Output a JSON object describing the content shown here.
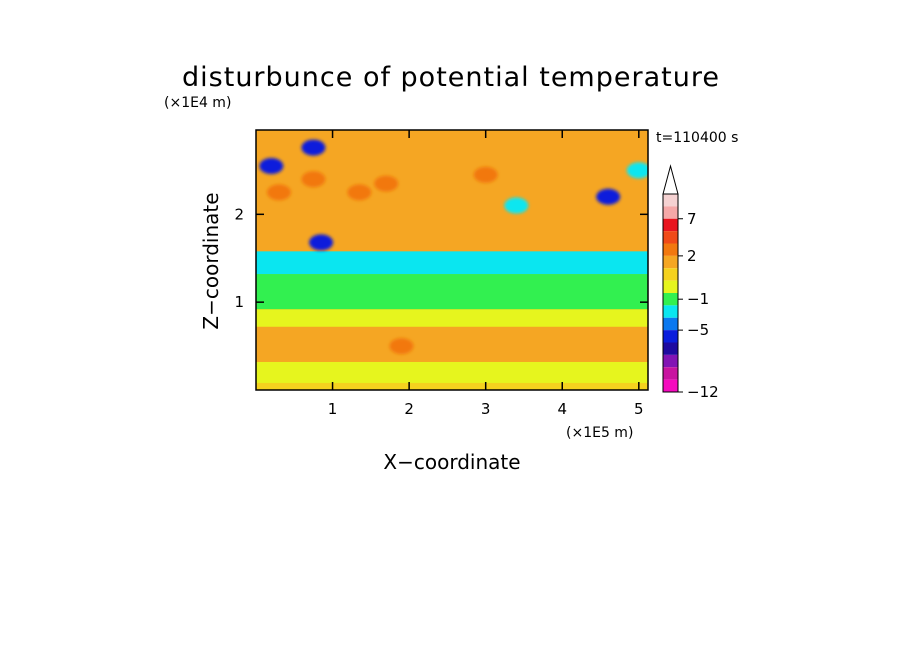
{
  "chart_data": {
    "type": "heatmap",
    "title": "disturbunce of potential temperature",
    "xlabel": "X−coordinate",
    "ylabel": "Z−coordinate",
    "x_unit": "(×1E5 m)",
    "y_unit": "(×1E4 m)",
    "time_label": "t=110400 s",
    "xlim": [
      0,
      5.12
    ],
    "ylim": [
      0,
      2.96
    ],
    "x_ticks": [
      1,
      2,
      3,
      4,
      5
    ],
    "y_ticks": [
      1,
      2
    ],
    "grid": false,
    "legend": "right",
    "colorbar": {
      "levels": [
        {
          "color": "#f5d2d2"
        },
        {
          "color": "#f5a8a8"
        },
        {
          "color": "#e8151f"
        },
        {
          "color": "#f04a18"
        },
        {
          "color": "#f2780f"
        },
        {
          "color": "#f5a623"
        },
        {
          "color": "#f5d21e"
        },
        {
          "color": "#e6f51e"
        },
        {
          "color": "#32f050"
        },
        {
          "color": "#0ae6f0"
        },
        {
          "color": "#0a78f0"
        },
        {
          "color": "#0a1edc"
        },
        {
          "color": "#1e0aa0"
        },
        {
          "color": "#8214b4"
        },
        {
          "color": "#c814a0"
        },
        {
          "color": "#f50abe"
        }
      ],
      "labels": [
        {
          "text": "7",
          "level_index": 2
        },
        {
          "text": "2",
          "level_index": 5
        },
        {
          "text": "−1",
          "level_index": 8.5
        },
        {
          "text": "−5",
          "level_index": 11
        },
        {
          "text": "−12",
          "level_index": 16
        }
      ]
    },
    "bands": [
      {
        "z_range": [
          0,
          0.08
        ],
        "color": "#f5d21e",
        "anomaly_deg": 1
      },
      {
        "z_range": [
          0.08,
          0.32
        ],
        "color": "#e6f51e",
        "anomaly_deg": 0.5
      },
      {
        "z_range": [
          0.32,
          0.72
        ],
        "color": "#f5a623",
        "anomaly_deg": 2
      },
      {
        "z_range": [
          0.72,
          0.92
        ],
        "color": "#e6f51e",
        "anomaly_deg": 0.5
      },
      {
        "z_range": [
          0.92,
          1.32
        ],
        "color": "#32f050",
        "anomaly_deg": -0.5
      },
      {
        "z_range": [
          1.32,
          1.58
        ],
        "color": "#0ae6f0",
        "anomaly_deg": -1
      },
      {
        "z_range": [
          1.58,
          2.96
        ],
        "color": "#f5a623",
        "anomaly_deg": 2
      }
    ],
    "features": [
      {
        "x": 0.75,
        "z": 2.76,
        "value": -6,
        "color": "#0a1edc"
      },
      {
        "x": 0.2,
        "z": 2.55,
        "value": -6,
        "color": "#0a1edc"
      },
      {
        "x": 0.85,
        "z": 1.68,
        "value": -6,
        "color": "#0a1edc"
      },
      {
        "x": 0.3,
        "z": 2.25,
        "value": 4,
        "color": "#f2780f"
      },
      {
        "x": 0.75,
        "z": 2.4,
        "value": 4,
        "color": "#f2780f"
      },
      {
        "x": 1.35,
        "z": 2.25,
        "value": 4,
        "color": "#f2780f"
      },
      {
        "x": 1.7,
        "z": 2.35,
        "value": 4,
        "color": "#f2780f"
      },
      {
        "x": 3.0,
        "z": 2.45,
        "value": 4,
        "color": "#f2780f"
      },
      {
        "x": 3.4,
        "z": 2.1,
        "value": -1,
        "color": "#0ae6f0"
      },
      {
        "x": 4.6,
        "z": 2.2,
        "value": -6,
        "color": "#0a1edc"
      },
      {
        "x": 1.9,
        "z": 0.5,
        "value": 3,
        "color": "#f2780f"
      },
      {
        "x": 5.0,
        "z": 2.5,
        "value": -1,
        "color": "#0ae6f0"
      }
    ]
  }
}
